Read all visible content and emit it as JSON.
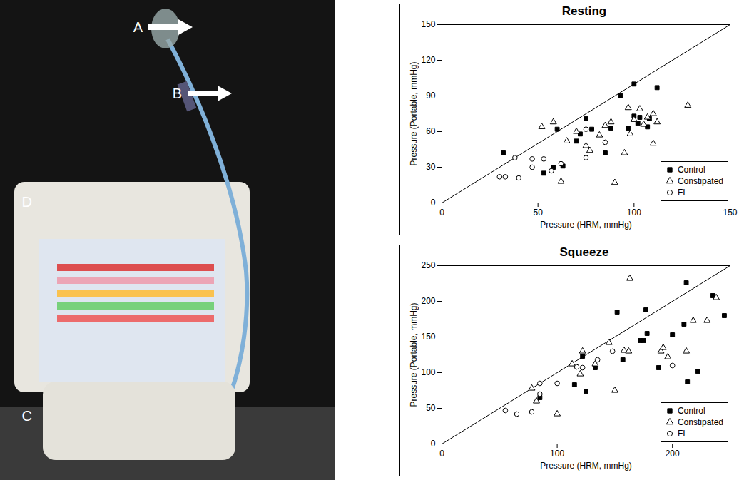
{
  "photo": {
    "labels": [
      "A",
      "B",
      "C",
      "D"
    ]
  },
  "chart_data": [
    {
      "type": "scatter",
      "title": "Resting",
      "x_label": "Pressure (HRM, mmHg)",
      "y_label": "Pressure (Portable, mmHg)",
      "xlim": [
        0,
        150
      ],
      "xticks": [
        0,
        50,
        100,
        150
      ],
      "ylim": [
        0,
        150
      ],
      "yticks": [
        0,
        30,
        60,
        90,
        120,
        150
      ],
      "grid": false,
      "legend": "lower right",
      "series": [
        {
          "type": "line",
          "color": "#000000",
          "line_style": "solid",
          "x": [
            0,
            150
          ],
          "values": [
            0,
            150
          ]
        },
        {
          "name": "Control",
          "color": "#000000",
          "marker": "square",
          "x": [
            32,
            53,
            58,
            60,
            63,
            70,
            72,
            75,
            78,
            85,
            88,
            93,
            97,
            100,
            100,
            102,
            103,
            107,
            108,
            112
          ],
          "values": [
            42,
            25,
            30,
            62,
            31,
            52,
            58,
            71,
            62,
            42,
            63,
            90,
            63,
            73,
            100,
            67,
            72,
            64,
            71,
            97
          ]
        },
        {
          "name": "Constipated",
          "color": "#000000",
          "marker": "triangle-open",
          "x": [
            52,
            58,
            62,
            65,
            70,
            75,
            77,
            82,
            85,
            88,
            90,
            95,
            97,
            98,
            100,
            103,
            105,
            107,
            110,
            110,
            112,
            128
          ],
          "values": [
            64,
            68,
            18,
            52,
            60,
            48,
            44,
            57,
            65,
            68,
            17,
            42,
            80,
            58,
            70,
            79,
            66,
            72,
            75,
            50,
            68,
            82
          ]
        },
        {
          "name": "FI",
          "color": "#000000",
          "marker": "circle-open",
          "x": [
            30,
            33,
            38,
            40,
            47,
            47,
            53,
            57,
            62,
            75,
            75,
            85
          ],
          "values": [
            22,
            22,
            38,
            21,
            37,
            30,
            37,
            27,
            33,
            62,
            38,
            51
          ]
        }
      ]
    },
    {
      "type": "scatter",
      "title": "Squeeze",
      "x_label": "Pressure (HRM, mmHg)",
      "y_label": "Pressure (Portable, mmHg)",
      "xlim": [
        0,
        250
      ],
      "xticks": [
        0,
        100,
        200
      ],
      "ylim": [
        0,
        250
      ],
      "yticks": [
        0,
        50,
        100,
        150,
        200,
        250
      ],
      "grid": false,
      "legend": "lower right",
      "series": [
        {
          "type": "line",
          "color": "#000000",
          "line_style": "solid",
          "x": [
            0,
            250
          ],
          "values": [
            0,
            250
          ]
        },
        {
          "name": "Control",
          "color": "#000000",
          "marker": "square",
          "x": [
            85,
            115,
            122,
            125,
            133,
            152,
            157,
            172,
            175,
            177,
            178,
            188,
            200,
            210,
            212,
            213,
            222,
            235,
            245
          ],
          "values": [
            65,
            83,
            123,
            74,
            107,
            185,
            118,
            145,
            145,
            188,
            155,
            107,
            153,
            168,
            226,
            87,
            102,
            208,
            180
          ]
        },
        {
          "name": "Constipated",
          "color": "#000000",
          "marker": "triangle-open",
          "x": [
            78,
            82,
            100,
            113,
            120,
            122,
            133,
            145,
            150,
            158,
            163,
            162,
            190,
            192,
            196,
            212,
            218,
            230,
            238
          ],
          "values": [
            78,
            60,
            42,
            112,
            98,
            130,
            112,
            142,
            75,
            131,
            232,
            130,
            130,
            135,
            122,
            130,
            173,
            173,
            205
          ]
        },
        {
          "name": "FI",
          "color": "#000000",
          "marker": "circle-open",
          "x": [
            55,
            65,
            78,
            85,
            85,
            100,
            117,
            122,
            135,
            148,
            200
          ],
          "values": [
            47,
            42,
            45,
            70,
            85,
            85,
            108,
            107,
            118,
            130,
            110
          ]
        }
      ]
    }
  ]
}
